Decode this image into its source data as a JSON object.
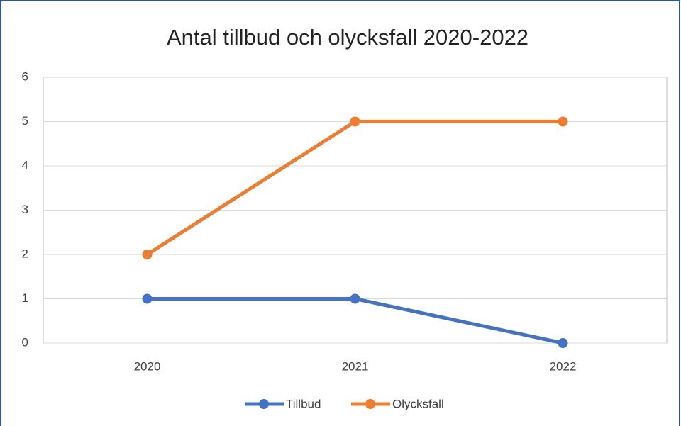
{
  "chart_data": {
    "type": "line",
    "title": "Antal tillbud och olycksfall 2020-2022",
    "categories": [
      "2020",
      "2021",
      "2022"
    ],
    "series": [
      {
        "name": "Tillbud",
        "color": "#4472c4",
        "values": [
          1,
          1,
          0
        ]
      },
      {
        "name": "Olycksfall",
        "color": "#ed7d31",
        "values": [
          2,
          5,
          5
        ]
      }
    ],
    "ylim": [
      0,
      6
    ],
    "yticks": [
      0,
      1,
      2,
      3,
      4,
      5,
      6
    ],
    "grid": true,
    "legend": "bottom"
  }
}
